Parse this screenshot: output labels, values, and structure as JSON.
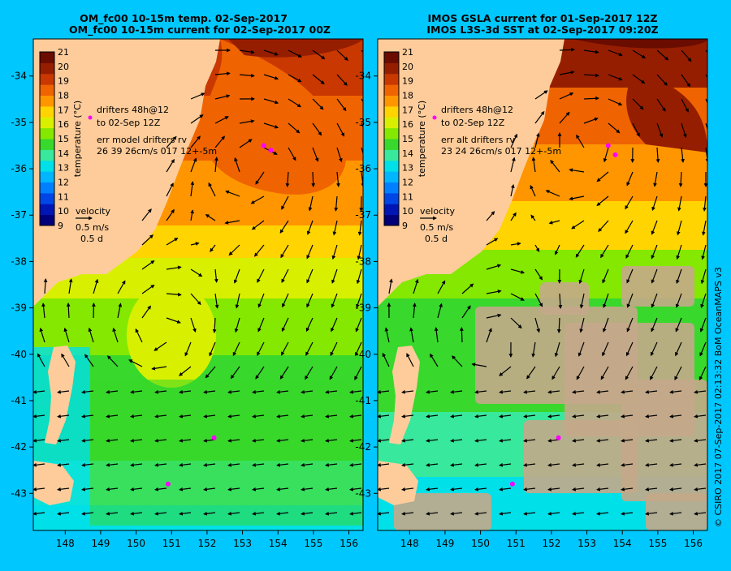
{
  "background_color": "#00c8ff",
  "land_color": "#fdcc9a",
  "missing_color": "#c4a88a",
  "credit": "© CSIRO 2017   07-Sep-2017 02:13:32 BoM OceanMAPS v3",
  "colorbar": {
    "label": "temperature (°C)",
    "ticks": [
      "9",
      "10",
      "11",
      "12",
      "13",
      "14",
      "15",
      "16",
      "17",
      "18",
      "19",
      "20",
      "21"
    ],
    "colors": [
      "#00007a",
      "#0016b4",
      "#0046e6",
      "#0080ff",
      "#00b6ff",
      "#00e0e8",
      "#38e89c",
      "#38d82c",
      "#84e800",
      "#d8f000",
      "#ffd400",
      "#ff9600",
      "#ef6400",
      "#c83800",
      "#961e00",
      "#6a0c00"
    ]
  },
  "drifter_legend": {
    "label": "drifters 48h@12",
    "date": "to 02-Sep 12Z"
  },
  "velocity_legend": {
    "title": "velocity",
    "speed": "0.5 m/s",
    "duration": "0.5 d"
  },
  "panels": [
    {
      "title_line1": "OM_fc00 10-15m temp. 02-Sep-2017",
      "title_line2": "OM_fc00 10-15m current for 02-Sep-2017 00Z",
      "err_line1": "err model drifters rv",
      "err_line2": "26 39 26cm/s 017 12+-5m"
    },
    {
      "title_line1": "IMOS GSLA current for 01-Sep-2017 12Z",
      "title_line2": "IMOS L3S-3d SST at 02-Sep-2017 09:20Z",
      "err_line1": "err alt drifters rv",
      "err_line2": "23 24 26cm/s 017 12+-5m"
    }
  ],
  "chart_data": [
    {
      "type": "heatmap",
      "title": "OM_fc00 10-15m temp. 02-Sep-2017 / OM_fc00 10-15m current for 02-Sep-2017 00Z",
      "x_ticks": [
        "148",
        "149",
        "150",
        "151",
        "152",
        "153",
        "154",
        "155",
        "156"
      ],
      "y_ticks": [
        "-34",
        "-35",
        "-36",
        "-37",
        "-38",
        "-39",
        "-40",
        "-41",
        "-42",
        "-43"
      ],
      "xlim": [
        147.1,
        156.4
      ],
      "ylim": [
        -43.8,
        -33.2
      ],
      "colorbar_range": [
        9,
        21
      ],
      "field": "temperature",
      "eddies": [
        {
          "lon": 153.4,
          "lat": -35.9,
          "rotation": "anticlockwise"
        },
        {
          "lon": 150.7,
          "lat": -39.6,
          "rotation": "anticlockwise"
        }
      ],
      "drifters": [
        {
          "lon": 153.6,
          "lat": -35.5
        },
        {
          "lon": 153.8,
          "lat": -35.6
        },
        {
          "lon": 152.2,
          "lat": -41.8
        },
        {
          "lon": 150.9,
          "lat": -42.8
        }
      ]
    },
    {
      "type": "heatmap",
      "title": "IMOS GSLA current for 01-Sep-2017 12Z / IMOS L3S-3d SST at 02-Sep-2017 09:20Z",
      "x_ticks": [
        "148",
        "149",
        "150",
        "151",
        "152",
        "153",
        "154",
        "155",
        "156"
      ],
      "y_ticks": [
        "-34",
        "-35",
        "-36",
        "-37",
        "-38",
        "-39",
        "-40",
        "-41",
        "-42",
        "-43"
      ],
      "xlim": [
        147.1,
        156.4
      ],
      "ylim": [
        -43.8,
        -33.2
      ],
      "colorbar_range": [
        9,
        21
      ],
      "field": "temperature",
      "eddies": [
        {
          "lon": 153.2,
          "lat": -35.4,
          "rotation": "anticlockwise"
        },
        {
          "lon": 150.3,
          "lat": -39.8,
          "rotation": "anticlockwise"
        }
      ],
      "drifters": [
        {
          "lon": 153.6,
          "lat": -35.5
        },
        {
          "lon": 153.8,
          "lat": -35.7
        },
        {
          "lon": 152.2,
          "lat": -41.8
        },
        {
          "lon": 150.9,
          "lat": -42.8
        }
      ]
    }
  ]
}
